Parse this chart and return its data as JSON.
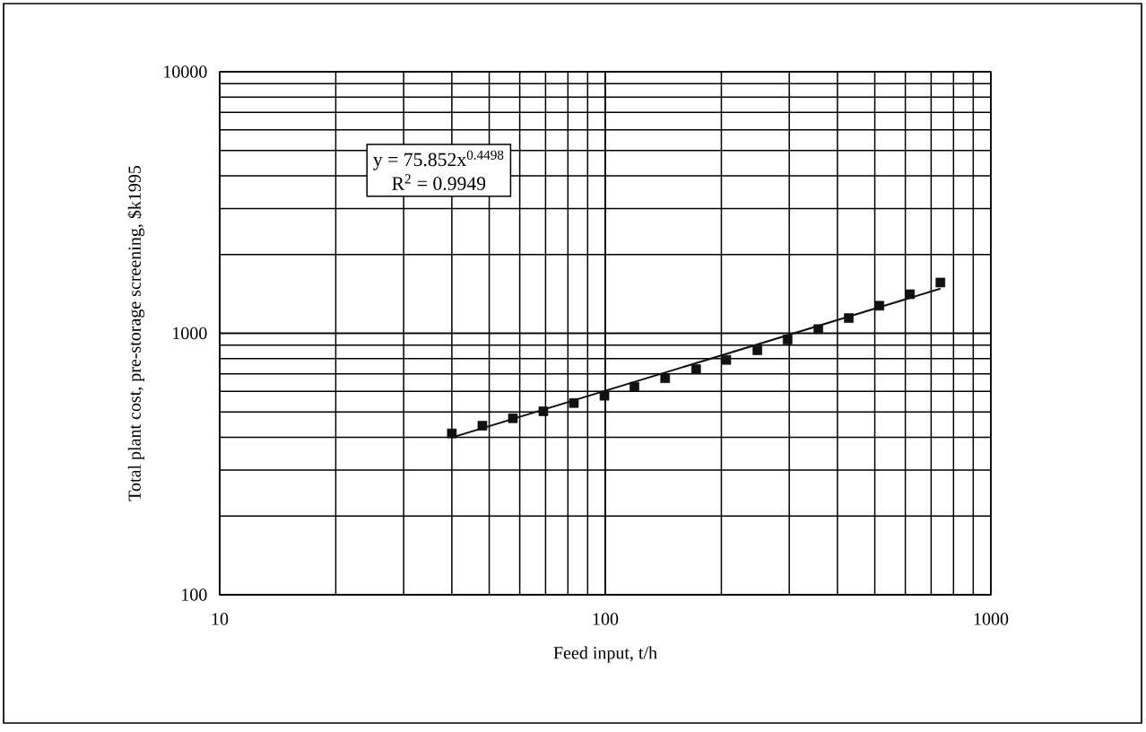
{
  "chart_data": {
    "type": "scatter",
    "xlabel": "Feed input, t/h",
    "ylabel": "Total plant cost, pre-storage screening, $k1995",
    "log": "xy",
    "grid": true,
    "marker": "square",
    "xlim": [
      10,
      1000
    ],
    "xticks": [
      10,
      100,
      1000
    ],
    "ylim": [
      100,
      10000
    ],
    "yticks": [
      100,
      1000,
      10000
    ],
    "annotations": [
      "y = 75.852x$^{0.4498}$",
      "R$^{2}$ = 0.9949"
    ],
    "series": [
      {
        "color": "#111111",
        "x": [
          40,
          48,
          57.6,
          69.1,
          82.9,
          99.5,
          119,
          143,
          172,
          206,
          248,
          297,
          357,
          428,
          514,
          617,
          740
        ],
        "values": [
          414,
          443,
          473,
          503,
          541,
          577,
          624,
          673,
          729,
          791,
          861,
          946,
          1037,
          1143,
          1274,
          1410,
          1563
        ]
      },
      {
        "type": "line",
        "color": "#111111",
        "marker": "none",
        "x": [
          40,
          740
        ],
        "values": [
          399,
          1481
        ]
      }
    ]
  }
}
